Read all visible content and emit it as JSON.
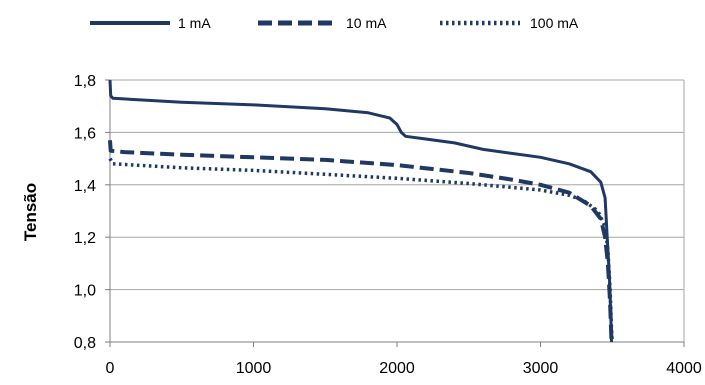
{
  "chart_data": {
    "type": "line",
    "title": "",
    "xlabel": "",
    "ylabel": "Tensão",
    "xlim": [
      0,
      4000
    ],
    "ylim": [
      0.8,
      1.8
    ],
    "xticks": [
      "0",
      "1000",
      "2000",
      "3000",
      "4000"
    ],
    "yticks": [
      "0,8",
      "1,0",
      "1,2",
      "1,4",
      "1,6",
      "1,8"
    ],
    "grid": "horizontal",
    "legend_position": "top",
    "series": [
      {
        "name": "1 mA",
        "style": "solid",
        "color": "#1f3864",
        "points": [
          [
            0,
            1.8
          ],
          [
            5,
            1.74
          ],
          [
            20,
            1.73
          ],
          [
            500,
            1.715
          ],
          [
            1000,
            1.705
          ],
          [
            1500,
            1.69
          ],
          [
            1800,
            1.675
          ],
          [
            1950,
            1.655
          ],
          [
            2000,
            1.63
          ],
          [
            2030,
            1.6
          ],
          [
            2060,
            1.585
          ],
          [
            2200,
            1.575
          ],
          [
            2400,
            1.56
          ],
          [
            2600,
            1.535
          ],
          [
            2800,
            1.52
          ],
          [
            3000,
            1.505
          ],
          [
            3200,
            1.48
          ],
          [
            3350,
            1.45
          ],
          [
            3420,
            1.41
          ],
          [
            3450,
            1.35
          ],
          [
            3465,
            1.2
          ],
          [
            3480,
            1.05
          ],
          [
            3490,
            0.9
          ],
          [
            3495,
            0.8
          ]
        ]
      },
      {
        "name": "10 mA",
        "style": "dashed",
        "color": "#1f3864",
        "points": [
          [
            0,
            1.57
          ],
          [
            5,
            1.53
          ],
          [
            100,
            1.525
          ],
          [
            500,
            1.515
          ],
          [
            1000,
            1.505
          ],
          [
            1500,
            1.495
          ],
          [
            2000,
            1.475
          ],
          [
            2500,
            1.445
          ],
          [
            2800,
            1.42
          ],
          [
            3000,
            1.4
          ],
          [
            3200,
            1.37
          ],
          [
            3350,
            1.32
          ],
          [
            3420,
            1.27
          ],
          [
            3450,
            1.2
          ],
          [
            3470,
            1.1
          ],
          [
            3485,
            0.95
          ],
          [
            3495,
            0.8
          ]
        ]
      },
      {
        "name": "100 mA",
        "style": "dotted",
        "color": "#1f3864",
        "points": [
          [
            0,
            1.5
          ],
          [
            20,
            1.48
          ],
          [
            500,
            1.465
          ],
          [
            1000,
            1.455
          ],
          [
            1500,
            1.44
          ],
          [
            2000,
            1.425
          ],
          [
            2500,
            1.405
          ],
          [
            2800,
            1.39
          ],
          [
            3000,
            1.38
          ],
          [
            3200,
            1.36
          ],
          [
            3300,
            1.34
          ],
          [
            3400,
            1.3
          ],
          [
            3450,
            1.24
          ],
          [
            3470,
            1.15
          ],
          [
            3485,
            1.0
          ],
          [
            3495,
            0.85
          ],
          [
            3500,
            0.8
          ]
        ]
      }
    ]
  }
}
